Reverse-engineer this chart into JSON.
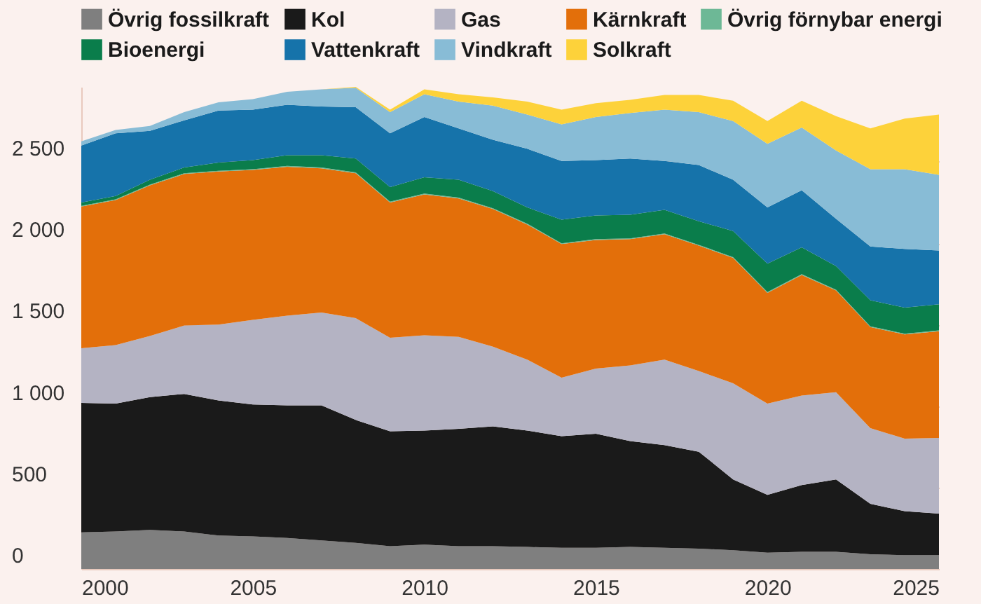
{
  "chart_data": {
    "type": "area",
    "stacked": true,
    "x": [
      2000,
      2001,
      2002,
      2003,
      2004,
      2005,
      2006,
      2007,
      2008,
      2009,
      2010,
      2011,
      2012,
      2013,
      2014,
      2015,
      2016,
      2017,
      2018,
      2019,
      2020,
      2021,
      2022,
      2023,
      2024,
      2025
    ],
    "series": [
      {
        "name": "Övrig fossilkraft",
        "color": "#7f7f7f",
        "values": [
          225,
          230,
          240,
          230,
          205,
          200,
          190,
          175,
          160,
          140,
          150,
          140,
          140,
          135,
          130,
          130,
          135,
          130,
          125,
          115,
          100,
          105,
          105,
          90,
          85,
          85
        ]
      },
      {
        "name": "Kol",
        "color": "#1a1a1a",
        "values": [
          795,
          785,
          815,
          845,
          830,
          810,
          815,
          830,
          755,
          705,
          700,
          720,
          735,
          715,
          685,
          700,
          650,
          630,
          595,
          435,
          355,
          410,
          445,
          310,
          270,
          255
        ]
      },
      {
        "name": "Gas",
        "color": "#b4b3c3",
        "values": [
          335,
          360,
          375,
          420,
          465,
          520,
          550,
          570,
          625,
          575,
          585,
          565,
          490,
          435,
          360,
          400,
          465,
          525,
          495,
          590,
          560,
          550,
          535,
          465,
          445,
          465
        ]
      },
      {
        "name": "Kärnkraft",
        "color": "#e36f0a",
        "values": [
          870,
          890,
          925,
          930,
          940,
          920,
          915,
          885,
          890,
          830,
          865,
          850,
          845,
          830,
          820,
          790,
          775,
          770,
          770,
          770,
          680,
          740,
          625,
          620,
          640,
          655
        ]
      },
      {
        "name": "Övrig förnybar energi",
        "color": "#6db896",
        "values": [
          5,
          5,
          5,
          5,
          5,
          5,
          5,
          5,
          5,
          5,
          5,
          5,
          5,
          5,
          5,
          5,
          5,
          5,
          5,
          5,
          5,
          5,
          5,
          5,
          5,
          5
        ]
      },
      {
        "name": "Bioenergi",
        "color": "#0a7d4b",
        "values": [
          20,
          20,
          30,
          35,
          50,
          55,
          65,
          75,
          85,
          90,
          100,
          110,
          105,
          100,
          145,
          145,
          145,
          145,
          145,
          160,
          175,
          165,
          145,
          160,
          160,
          160
        ]
      },
      {
        "name": "Vattenkraft",
        "color": "#1673aa",
        "values": [
          350,
          385,
          300,
          290,
          320,
          310,
          310,
          300,
          315,
          330,
          370,
          315,
          315,
          360,
          360,
          340,
          345,
          300,
          345,
          315,
          345,
          350,
          290,
          330,
          360,
          330
        ]
      },
      {
        "name": "Vindkraft",
        "color": "#88bcd6",
        "values": [
          25,
          20,
          30,
          50,
          50,
          65,
          80,
          105,
          120,
          130,
          140,
          165,
          210,
          210,
          225,
          265,
          280,
          315,
          325,
          360,
          390,
          385,
          420,
          475,
          490,
          465
        ]
      },
      {
        "name": "Solkraft",
        "color": "#fdd23a",
        "values": [
          0,
          0,
          0,
          0,
          0,
          0,
          0,
          0,
          5,
          15,
          30,
          45,
          50,
          80,
          90,
          85,
          80,
          90,
          105,
          125,
          140,
          165,
          210,
          250,
          310,
          370
        ]
      }
    ],
    "xlim": [
      2000,
      2025
    ],
    "xticks": [
      2000,
      2005,
      2010,
      2015,
      2020,
      2025
    ],
    "ylim": [
      0,
      2960
    ],
    "yticks": [
      0,
      500,
      {
        "value": 1000,
        "label": "1 000"
      },
      {
        "value": 1500,
        "label": "1 500"
      },
      {
        "value": 2000,
        "label": "2 000"
      },
      {
        "value": 2500,
        "label": "2 500"
      }
    ],
    "grid": "y",
    "legend": "top left"
  }
}
